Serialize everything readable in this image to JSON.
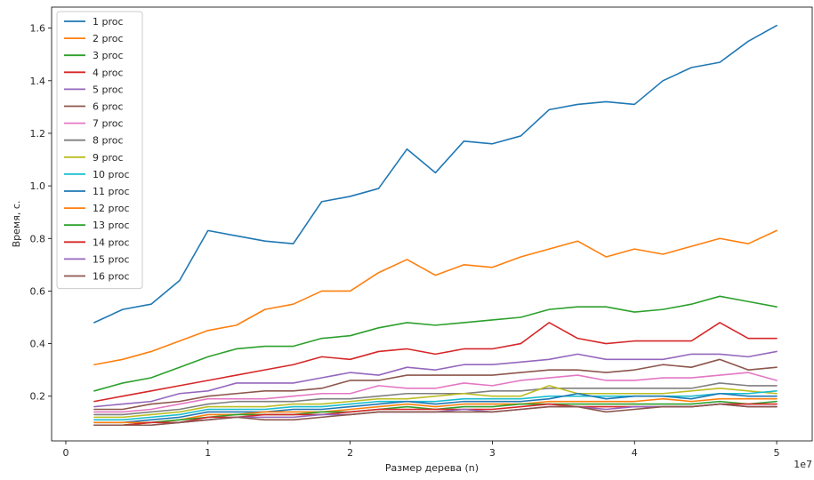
{
  "chart_data": {
    "type": "line",
    "xlabel": "Размер дерева (n)",
    "ylabel": "Время, с.",
    "x_multiplier": "1e7",
    "xlim": [
      -0.1,
      5.25
    ],
    "ylim": [
      0.03,
      1.68
    ],
    "xticks": [
      0,
      1,
      2,
      3,
      4,
      5
    ],
    "yticks": [
      0.2,
      0.4,
      0.6,
      0.8,
      1.0,
      1.2,
      1.4,
      1.6
    ],
    "ytick_labels": [
      "0.2",
      "0.4",
      "0.6",
      "0.8",
      "1.0",
      "1.2",
      "1.4",
      "1.6"
    ],
    "legend_position": "upper-left",
    "x": [
      0.2,
      0.4,
      0.6,
      0.8,
      1.0,
      1.2,
      1.4,
      1.6,
      1.8,
      2.0,
      2.2,
      2.4,
      2.6,
      2.8,
      3.0,
      3.2,
      3.4,
      3.6,
      3.8,
      4.0,
      4.2,
      4.4,
      4.6,
      4.8,
      5.0
    ],
    "series": [
      {
        "name": "1 proc",
        "color": "#1f77b4",
        "values": [
          0.48,
          0.53,
          0.55,
          0.64,
          0.83,
          0.81,
          0.79,
          0.78,
          0.94,
          0.96,
          0.99,
          1.14,
          1.05,
          1.17,
          1.16,
          1.19,
          1.29,
          1.31,
          1.32,
          1.31,
          1.4,
          1.45,
          1.47,
          1.55,
          1.61
        ]
      },
      {
        "name": "2 proc",
        "color": "#ff7f0e",
        "values": [
          0.32,
          0.34,
          0.37,
          0.41,
          0.45,
          0.47,
          0.53,
          0.55,
          0.6,
          0.6,
          0.67,
          0.72,
          0.66,
          0.7,
          0.69,
          0.73,
          0.76,
          0.79,
          0.73,
          0.76,
          0.74,
          0.77,
          0.8,
          0.78,
          0.83
        ]
      },
      {
        "name": "3 proc",
        "color": "#2ca02c",
        "values": [
          0.22,
          0.25,
          0.27,
          0.31,
          0.35,
          0.38,
          0.39,
          0.39,
          0.42,
          0.43,
          0.46,
          0.48,
          0.47,
          0.48,
          0.49,
          0.5,
          0.53,
          0.54,
          0.54,
          0.52,
          0.53,
          0.55,
          0.58,
          0.56,
          0.54
        ]
      },
      {
        "name": "4 proc",
        "color": "#d62728",
        "values": [
          0.18,
          0.2,
          0.22,
          0.24,
          0.26,
          0.28,
          0.3,
          0.32,
          0.35,
          0.34,
          0.37,
          0.38,
          0.36,
          0.38,
          0.38,
          0.4,
          0.48,
          0.42,
          0.4,
          0.41,
          0.41,
          0.41,
          0.48,
          0.42,
          0.42
        ]
      },
      {
        "name": "5 proc",
        "color": "#9467bd",
        "values": [
          0.16,
          0.17,
          0.18,
          0.21,
          0.22,
          0.25,
          0.25,
          0.25,
          0.27,
          0.29,
          0.28,
          0.31,
          0.3,
          0.32,
          0.32,
          0.33,
          0.34,
          0.36,
          0.34,
          0.34,
          0.34,
          0.36,
          0.36,
          0.35,
          0.37
        ]
      },
      {
        "name": "6 proc",
        "color": "#8c564b",
        "values": [
          0.15,
          0.15,
          0.17,
          0.18,
          0.2,
          0.21,
          0.22,
          0.22,
          0.23,
          0.26,
          0.26,
          0.28,
          0.28,
          0.28,
          0.28,
          0.29,
          0.3,
          0.3,
          0.29,
          0.3,
          0.32,
          0.31,
          0.34,
          0.3,
          0.31
        ]
      },
      {
        "name": "7 proc",
        "color": "#e377c2",
        "values": [
          0.14,
          0.14,
          0.15,
          0.17,
          0.19,
          0.19,
          0.19,
          0.2,
          0.21,
          0.21,
          0.24,
          0.23,
          0.23,
          0.25,
          0.24,
          0.26,
          0.27,
          0.28,
          0.26,
          0.26,
          0.27,
          0.27,
          0.28,
          0.29,
          0.26
        ]
      },
      {
        "name": "8 proc",
        "color": "#7f7f7f",
        "values": [
          0.13,
          0.13,
          0.14,
          0.15,
          0.17,
          0.18,
          0.18,
          0.18,
          0.19,
          0.19,
          0.2,
          0.21,
          0.21,
          0.21,
          0.22,
          0.22,
          0.23,
          0.23,
          0.23,
          0.23,
          0.23,
          0.23,
          0.25,
          0.24,
          0.24
        ]
      },
      {
        "name": "9 proc",
        "color": "#bcbd22",
        "values": [
          0.12,
          0.12,
          0.13,
          0.14,
          0.16,
          0.16,
          0.16,
          0.17,
          0.17,
          0.18,
          0.19,
          0.19,
          0.2,
          0.21,
          0.2,
          0.2,
          0.24,
          0.21,
          0.21,
          0.21,
          0.21,
          0.22,
          0.23,
          0.22,
          0.21
        ]
      },
      {
        "name": "10 proc",
        "color": "#17becf",
        "values": [
          0.11,
          0.11,
          0.12,
          0.13,
          0.15,
          0.15,
          0.15,
          0.16,
          0.16,
          0.17,
          0.18,
          0.18,
          0.18,
          0.19,
          0.19,
          0.19,
          0.2,
          0.2,
          0.2,
          0.2,
          0.2,
          0.2,
          0.21,
          0.21,
          0.22
        ]
      },
      {
        "name": "11 proc",
        "color": "#1f77b4",
        "values": [
          0.1,
          0.1,
          0.11,
          0.12,
          0.14,
          0.14,
          0.14,
          0.15,
          0.15,
          0.16,
          0.17,
          0.18,
          0.17,
          0.18,
          0.18,
          0.18,
          0.19,
          0.21,
          0.19,
          0.2,
          0.2,
          0.19,
          0.21,
          0.2,
          0.2
        ]
      },
      {
        "name": "12 proc",
        "color": "#ff7f0e",
        "values": [
          0.1,
          0.1,
          0.1,
          0.11,
          0.13,
          0.13,
          0.14,
          0.14,
          0.14,
          0.15,
          0.16,
          0.17,
          0.16,
          0.17,
          0.17,
          0.17,
          0.18,
          0.18,
          0.18,
          0.18,
          0.19,
          0.18,
          0.19,
          0.19,
          0.19
        ]
      },
      {
        "name": "13 proc",
        "color": "#2ca02c",
        "values": [
          0.09,
          0.09,
          0.1,
          0.11,
          0.12,
          0.13,
          0.13,
          0.13,
          0.14,
          0.14,
          0.15,
          0.16,
          0.15,
          0.16,
          0.16,
          0.17,
          0.17,
          0.17,
          0.17,
          0.17,
          0.17,
          0.17,
          0.18,
          0.17,
          0.18
        ]
      },
      {
        "name": "14 proc",
        "color": "#d62728",
        "values": [
          0.09,
          0.09,
          0.1,
          0.1,
          0.12,
          0.12,
          0.13,
          0.13,
          0.13,
          0.14,
          0.15,
          0.15,
          0.15,
          0.15,
          0.15,
          0.16,
          0.17,
          0.16,
          0.16,
          0.16,
          0.16,
          0.16,
          0.17,
          0.17,
          0.17
        ]
      },
      {
        "name": "15 proc",
        "color": "#9467bd",
        "values": [
          0.09,
          0.09,
          0.09,
          0.1,
          0.11,
          0.12,
          0.12,
          0.12,
          0.13,
          0.13,
          0.14,
          0.14,
          0.14,
          0.15,
          0.14,
          0.15,
          0.16,
          0.16,
          0.15,
          0.16,
          0.16,
          0.16,
          0.17,
          0.16,
          0.16
        ]
      },
      {
        "name": "16 proc",
        "color": "#8c564b",
        "values": [
          0.09,
          0.09,
          0.09,
          0.1,
          0.11,
          0.12,
          0.11,
          0.11,
          0.12,
          0.13,
          0.14,
          0.14,
          0.14,
          0.14,
          0.14,
          0.15,
          0.16,
          0.16,
          0.14,
          0.15,
          0.16,
          0.16,
          0.17,
          0.16,
          0.16
        ]
      }
    ]
  }
}
